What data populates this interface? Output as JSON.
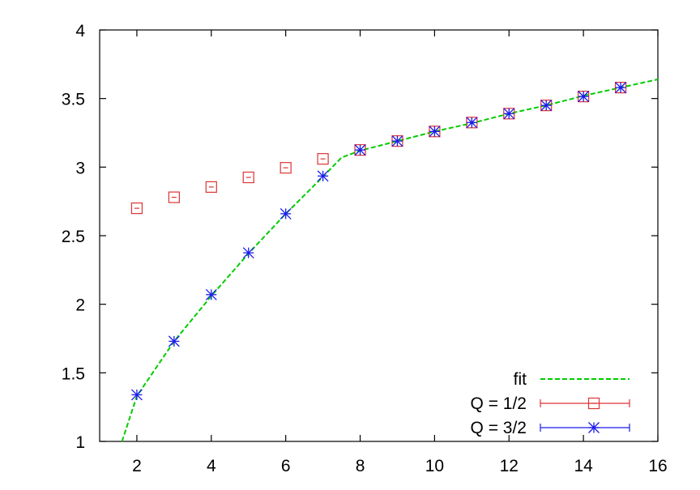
{
  "chart_data": {
    "type": "scatter",
    "title": "",
    "xlabel": "",
    "ylabel": "",
    "xlim": [
      1,
      16
    ],
    "ylim": [
      1,
      4
    ],
    "xticks": [
      2,
      4,
      6,
      8,
      10,
      12,
      14,
      16
    ],
    "yticks": [
      1,
      1.5,
      2,
      2.5,
      3,
      3.5,
      4
    ],
    "ytick_labels": [
      "1",
      "1.5",
      "2",
      "2.5",
      "3",
      "3.5",
      "4"
    ],
    "grid": false,
    "legend_position": "bottom-right",
    "series": [
      {
        "name": "fit",
        "kind": "line",
        "style": "dashed",
        "color": "#00cc00",
        "x": [
          1.6,
          2,
          3,
          4,
          5,
          6,
          7,
          7.5,
          8,
          9,
          10,
          11,
          12,
          13,
          14,
          15,
          16
        ],
        "y": [
          1.0,
          1.33,
          1.73,
          2.06,
          2.37,
          2.66,
          2.93,
          3.07,
          3.12,
          3.19,
          3.26,
          3.32,
          3.39,
          3.45,
          3.52,
          3.58,
          3.64
        ]
      },
      {
        "name": "Q = 1/2",
        "kind": "points",
        "marker": "square",
        "color": "#dd3333",
        "x": [
          2,
          3,
          4,
          5,
          6,
          7,
          8,
          9,
          10,
          11,
          12,
          13,
          14,
          15
        ],
        "y": [
          2.7,
          2.78,
          2.855,
          2.925,
          2.995,
          3.06,
          3.125,
          3.19,
          3.26,
          3.325,
          3.39,
          3.45,
          3.515,
          3.58
        ]
      },
      {
        "name": "Q = 3/2",
        "kind": "points",
        "marker": "star",
        "color": "#1a1aee",
        "x": [
          2,
          3,
          4,
          5,
          6,
          7,
          8,
          9,
          10,
          11,
          12,
          13,
          14,
          15
        ],
        "y": [
          1.34,
          1.73,
          2.07,
          2.375,
          2.66,
          2.935,
          3.125,
          3.19,
          3.26,
          3.325,
          3.39,
          3.45,
          3.515,
          3.58
        ]
      }
    ]
  }
}
